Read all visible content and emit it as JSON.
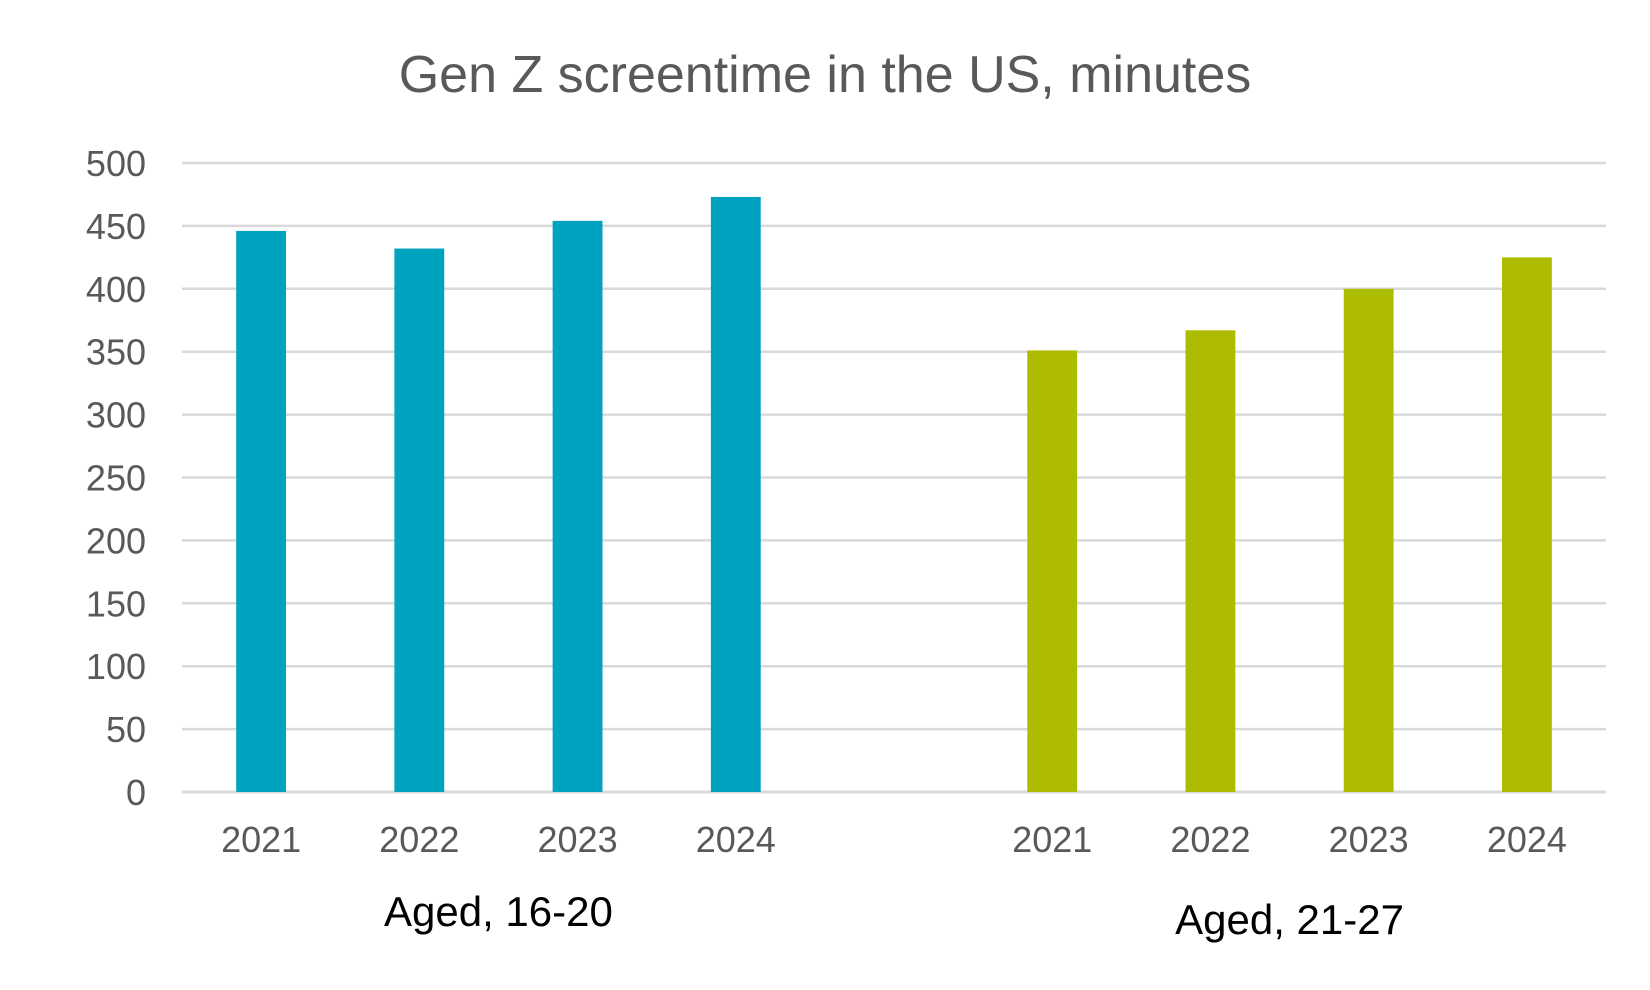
{
  "chart_data": {
    "type": "bar",
    "title": "Gen Z screentime in the US, minutes",
    "xlabel": "",
    "ylabel": "",
    "ylim": [
      0,
      500
    ],
    "yticks": [
      "0",
      "50",
      "100",
      "150",
      "200",
      "250",
      "300",
      "350",
      "400",
      "450",
      "500"
    ],
    "grid": true,
    "groups": [
      {
        "label": "Aged, 16-20",
        "color": "#00A3BF",
        "categories": [
          "2021",
          "2022",
          "2023",
          "2024"
        ],
        "values": [
          446,
          432,
          454,
          473
        ]
      },
      {
        "label": "Aged, 21-27",
        "color": "#ADBC00",
        "categories": [
          "2021",
          "2022",
          "2023",
          "2024"
        ],
        "values": [
          351,
          367,
          400,
          425
        ]
      }
    ]
  }
}
